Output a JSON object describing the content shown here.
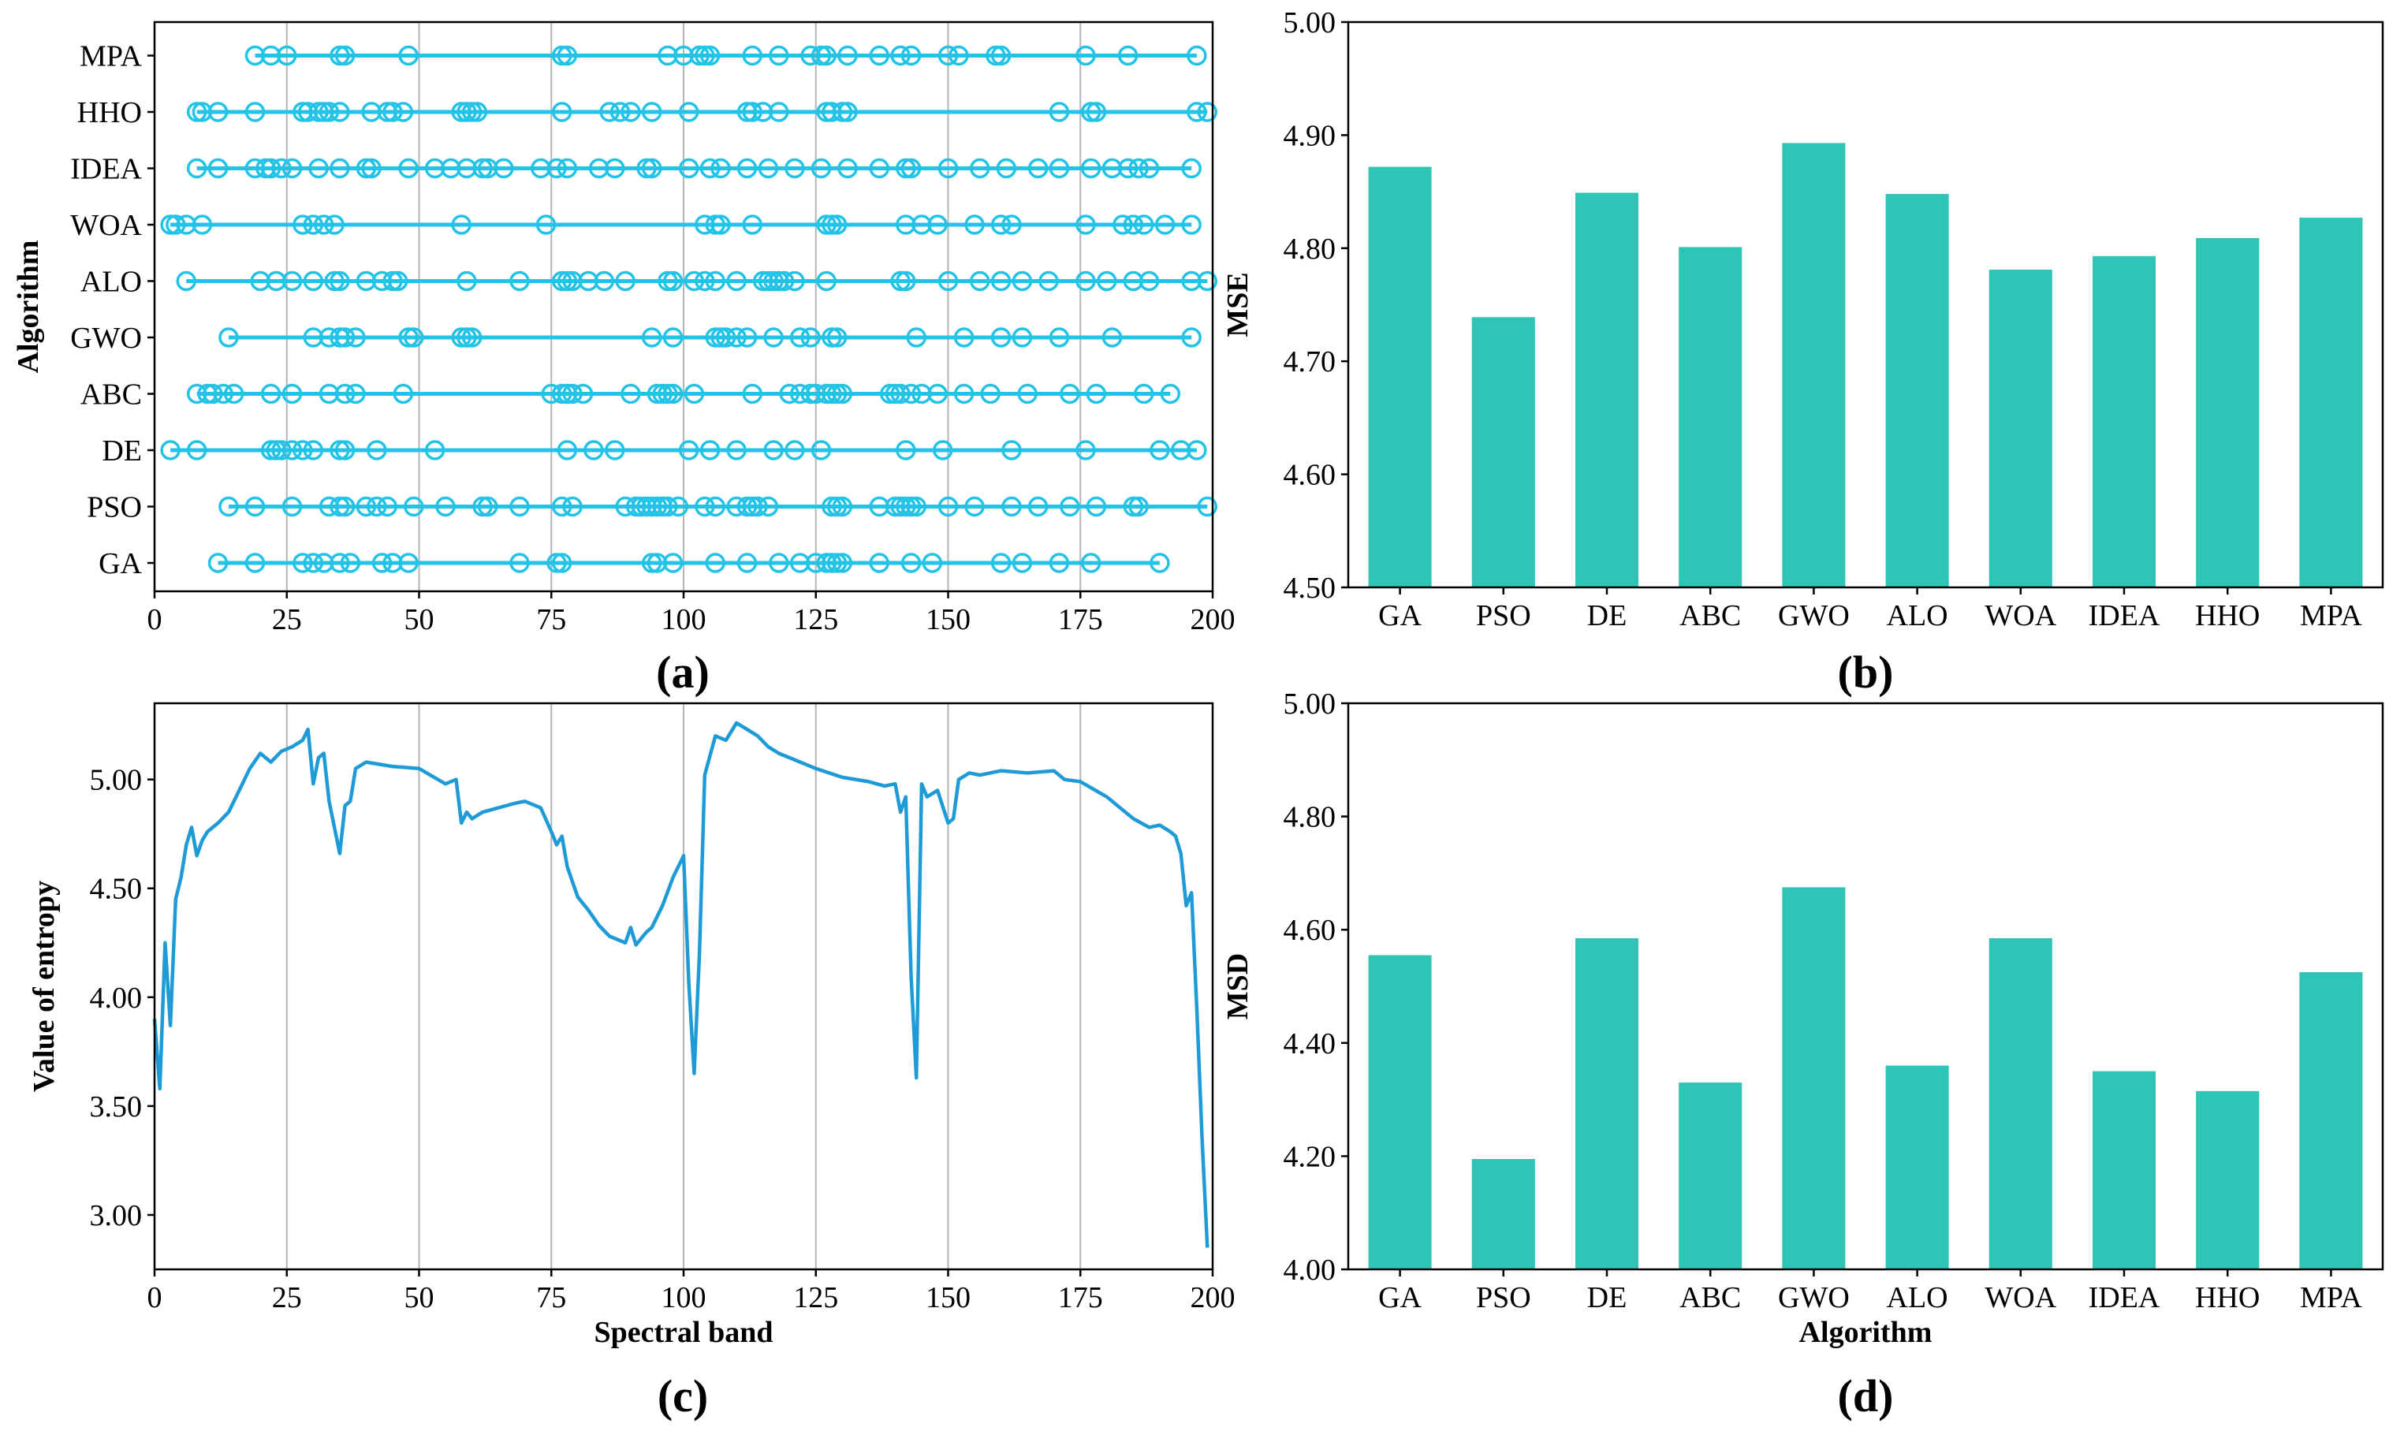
{
  "chart_data": [
    {
      "panel": "(a)",
      "type": "scatter",
      "ylabel": "Algorithm",
      "xlim": [
        0,
        200
      ],
      "xticks": [
        0,
        25,
        50,
        75,
        100,
        125,
        150,
        175,
        200
      ],
      "color": "#22c3e6",
      "categories": [
        "GA",
        "PSO",
        "DE",
        "ABC",
        "GWO",
        "ALO",
        "WOA",
        "IDEA",
        "HHO",
        "MPA"
      ],
      "series": [
        {
          "name": "MPA",
          "values": [
            19,
            22,
            25,
            35,
            36,
            48,
            77,
            78,
            97,
            100,
            103,
            104,
            105,
            113,
            118,
            124,
            126,
            127,
            131,
            137,
            141,
            143,
            150,
            152,
            159,
            160,
            176,
            184,
            197
          ]
        },
        {
          "name": "HHO",
          "values": [
            8,
            9,
            12,
            19,
            28,
            29,
            31,
            32,
            33,
            35,
            41,
            44,
            45,
            47,
            58,
            59,
            60,
            61,
            77,
            86,
            88,
            90,
            94,
            101,
            112,
            113,
            115,
            118,
            127,
            128,
            130,
            131,
            171,
            177,
            178,
            197,
            199
          ]
        },
        {
          "name": "IDEA",
          "values": [
            8,
            12,
            19,
            21,
            22,
            24,
            26,
            31,
            35,
            40,
            41,
            48,
            53,
            56,
            59,
            62,
            63,
            66,
            73,
            76,
            78,
            84,
            87,
            93,
            94,
            101,
            105,
            107,
            112,
            116,
            121,
            126,
            131,
            137,
            142,
            143,
            150,
            156,
            161,
            167,
            171,
            177,
            181,
            184,
            186,
            188,
            196
          ]
        },
        {
          "name": "WOA",
          "values": [
            3,
            4,
            6,
            9,
            28,
            30,
            32,
            34,
            58,
            74,
            104,
            106,
            107,
            113,
            127,
            128,
            129,
            142,
            145,
            148,
            155,
            160,
            162,
            176,
            183,
            185,
            187,
            191,
            196
          ]
        },
        {
          "name": "ALO",
          "values": [
            6,
            20,
            23,
            26,
            30,
            34,
            35,
            40,
            43,
            45,
            46,
            59,
            69,
            77,
            78,
            79,
            82,
            85,
            89,
            97,
            98,
            102,
            104,
            106,
            110,
            115,
            116,
            117,
            118,
            119,
            121,
            127,
            141,
            142,
            150,
            156,
            160,
            164,
            169,
            176,
            180,
            185,
            188,
            196,
            199
          ]
        },
        {
          "name": "GWO",
          "values": [
            14,
            30,
            33,
            35,
            36,
            38,
            48,
            49,
            58,
            59,
            60,
            94,
            98,
            106,
            107,
            108,
            110,
            112,
            117,
            122,
            124,
            128,
            129,
            144,
            153,
            160,
            164,
            171,
            181,
            196
          ]
        },
        {
          "name": "ABC",
          "values": [
            8,
            10,
            11,
            13,
            15,
            22,
            26,
            33,
            36,
            38,
            47,
            75,
            77,
            78,
            79,
            81,
            90,
            95,
            96,
            97,
            98,
            102,
            113,
            120,
            122,
            124,
            125,
            127,
            128,
            129,
            130,
            139,
            140,
            141,
            143,
            145,
            148,
            153,
            158,
            165,
            173,
            178,
            187,
            192
          ]
        },
        {
          "name": "DE",
          "values": [
            3,
            8,
            22,
            23,
            24,
            26,
            28,
            30,
            35,
            36,
            42,
            53,
            78,
            83,
            87,
            101,
            105,
            110,
            117,
            121,
            126,
            142,
            149,
            162,
            176,
            190,
            194,
            197
          ]
        },
        {
          "name": "PSO",
          "values": [
            14,
            19,
            26,
            33,
            35,
            36,
            40,
            42,
            44,
            49,
            55,
            62,
            63,
            69,
            77,
            79,
            89,
            91,
            92,
            93,
            94,
            95,
            96,
            97,
            99,
            104,
            106,
            110,
            112,
            113,
            114,
            116,
            128,
            129,
            130,
            137,
            140,
            141,
            142,
            143,
            144,
            150,
            155,
            162,
            167,
            173,
            178,
            185,
            186,
            199
          ]
        },
        {
          "name": "GA",
          "values": [
            12,
            19,
            28,
            30,
            32,
            35,
            37,
            43,
            45,
            48,
            69,
            76,
            77,
            94,
            95,
            98,
            106,
            112,
            118,
            122,
            125,
            127,
            128,
            129,
            130,
            137,
            143,
            147,
            160,
            164,
            171,
            177,
            190
          ]
        }
      ]
    },
    {
      "panel": "(b)",
      "type": "bar",
      "ylabel": "MSE",
      "xlabel": "",
      "ylim": [
        4.5,
        5.0
      ],
      "yticks": [
        "4.50",
        "4.60",
        "4.70",
        "4.80",
        "4.90",
        "5.00"
      ],
      "color": "#2ec4b6",
      "categories": [
        "GA",
        "PSO",
        "DE",
        "ABC",
        "GWO",
        "ALO",
        "WOA",
        "IDEA",
        "HHO",
        "MPA"
      ],
      "values": [
        4.872,
        4.739,
        4.849,
        4.801,
        4.893,
        4.848,
        4.781,
        4.793,
        4.809,
        4.827
      ]
    },
    {
      "panel": "(c)",
      "type": "line",
      "xlabel": "Spectral band",
      "ylabel": "Value of entropy",
      "xlim": [
        0,
        200
      ],
      "ylim": [
        2.75,
        5.35
      ],
      "xticks": [
        0,
        25,
        50,
        75,
        100,
        125,
        150,
        175,
        200
      ],
      "yticks": [
        "3.00",
        "3.50",
        "4.00",
        "4.50",
        "5.00"
      ],
      "color": "#1e9bd7",
      "x": [
        0,
        1,
        2,
        3,
        4,
        5,
        6,
        7,
        8,
        9,
        10,
        12,
        14,
        16,
        18,
        20,
        22,
        24,
        26,
        28,
        29,
        30,
        31,
        32,
        33,
        35,
        36,
        37,
        38,
        40,
        45,
        50,
        55,
        57,
        58,
        59,
        60,
        62,
        65,
        68,
        70,
        73,
        75,
        76,
        77,
        78,
        80,
        82,
        84,
        86,
        88,
        89,
        90,
        91,
        92,
        93,
        94,
        96,
        98,
        100,
        101,
        102,
        103,
        104,
        106,
        108,
        110,
        112,
        114,
        116,
        118,
        120,
        125,
        130,
        135,
        138,
        140,
        141,
        142,
        143,
        144,
        145,
        146,
        148,
        150,
        151,
        152,
        154,
        156,
        160,
        165,
        170,
        172,
        175,
        180,
        185,
        188,
        190,
        192,
        193,
        194,
        195,
        196,
        197,
        198,
        199
      ],
      "y": [
        3.9,
        3.58,
        4.25,
        3.87,
        4.45,
        4.55,
        4.7,
        4.78,
        4.65,
        4.72,
        4.76,
        4.8,
        4.85,
        4.95,
        5.05,
        5.12,
        5.08,
        5.13,
        5.15,
        5.18,
        5.23,
        4.98,
        5.1,
        5.12,
        4.9,
        4.66,
        4.88,
        4.9,
        5.05,
        5.08,
        5.06,
        5.05,
        4.98,
        5.0,
        4.8,
        4.85,
        4.82,
        4.85,
        4.87,
        4.89,
        4.9,
        4.87,
        4.76,
        4.7,
        4.74,
        4.6,
        4.46,
        4.4,
        4.33,
        4.28,
        4.26,
        4.25,
        4.32,
        4.24,
        4.27,
        4.3,
        4.32,
        4.42,
        4.55,
        4.65,
        4.06,
        3.65,
        4.2,
        5.02,
        5.2,
        5.18,
        5.26,
        5.23,
        5.2,
        5.15,
        5.12,
        5.1,
        5.05,
        5.01,
        4.99,
        4.97,
        4.98,
        4.85,
        4.92,
        4.1,
        3.63,
        4.98,
        4.92,
        4.95,
        4.8,
        4.82,
        5.0,
        5.03,
        5.02,
        5.04,
        5.03,
        5.04,
        5.0,
        4.99,
        4.92,
        4.82,
        4.78,
        4.79,
        4.76,
        4.74,
        4.66,
        4.42,
        4.48,
        3.95,
        3.35,
        2.85
      ]
    },
    {
      "panel": "(d)",
      "type": "bar",
      "ylabel": "MSD",
      "xlabel": "Algorithm",
      "ylim": [
        4.0,
        5.0
      ],
      "yticks": [
        "4.00",
        "4.20",
        "4.40",
        "4.60",
        "4.80",
        "5.00"
      ],
      "color": "#2ec4b6",
      "categories": [
        "GA",
        "PSO",
        "DE",
        "ABC",
        "GWO",
        "ALO",
        "WOA",
        "IDEA",
        "HHO",
        "MPA"
      ],
      "values": [
        4.555,
        4.195,
        4.585,
        4.33,
        4.675,
        4.36,
        4.585,
        4.35,
        4.315,
        4.525
      ]
    }
  ]
}
